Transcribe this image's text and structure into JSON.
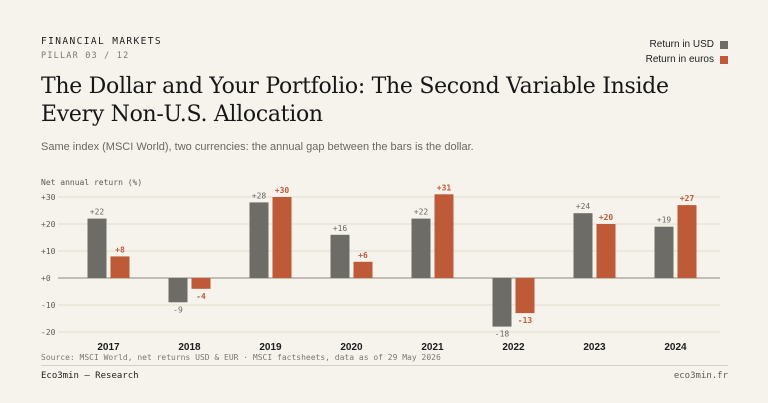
{
  "header": {
    "eyebrow": "FINANCIAL MARKETS",
    "pillar": "PILLAR 03 / 12",
    "title": "The Dollar and Your Portfolio: The Second Variable Inside Every Non-U.S. Allocation",
    "subtitle": "Same index (MSCI World), two currencies: the annual gap between the bars is the dollar."
  },
  "legend": [
    {
      "label": "Return in USD",
      "color": "#6e6c66"
    },
    {
      "label": "Return in euros",
      "color": "#bf5a38"
    }
  ],
  "footer": {
    "source": "Source: MSCI World, net returns USD & EUR · MSCI factsheets, data as of 29 May 2026",
    "brand": "Eco3min — Research",
    "site": "eco3min.fr"
  },
  "chart_data": {
    "type": "bar",
    "ylabel": "Net annual return (%)",
    "ylim": [
      -20,
      30
    ],
    "yticks": [
      -20,
      -10,
      0,
      10,
      20,
      30
    ],
    "ytick_labels": [
      "-20",
      "-10",
      "+0",
      "+10",
      "+20",
      "+30"
    ],
    "grid": true,
    "legend_position": "top-right",
    "categories": [
      "2017",
      "2018",
      "2019",
      "2020",
      "2021",
      "2022",
      "2023",
      "2024"
    ],
    "series": [
      {
        "name": "Return in USD",
        "color": "#6e6c66",
        "values": [
          22,
          -9,
          28,
          16,
          22,
          -18,
          24,
          19
        ],
        "labels": [
          "+22",
          "-9",
          "+28",
          "+16",
          "+22",
          "-18",
          "+24",
          "+19"
        ]
      },
      {
        "name": "Return in euros",
        "color": "#bf5a38",
        "values": [
          8,
          -4,
          30,
          6,
          31,
          -13,
          20,
          27
        ],
        "labels": [
          "+8",
          "-4",
          "+30",
          "+6",
          "+31",
          "-13",
          "+20",
          "+27"
        ]
      }
    ]
  }
}
